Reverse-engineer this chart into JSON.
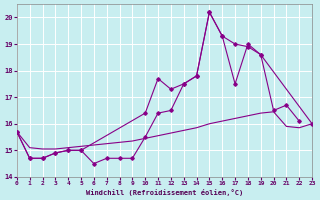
{
  "bg_color": "#c8eef0",
  "grid_color": "#b8dde0",
  "line_color": "#880088",
  "xlabel": "Windchill (Refroidissement éolien,°C)",
  "xlim": [
    0,
    23
  ],
  "ylim": [
    14,
    20.5
  ],
  "yticks": [
    14,
    15,
    16,
    17,
    18,
    19,
    20
  ],
  "xticks": [
    0,
    1,
    2,
    3,
    4,
    5,
    6,
    7,
    8,
    9,
    10,
    11,
    12,
    13,
    14,
    15,
    16,
    17,
    18,
    19,
    20,
    21,
    22,
    23
  ],
  "line1_x": [
    0,
    1,
    2,
    3,
    4,
    5,
    6,
    7,
    8,
    9,
    10,
    11,
    12,
    13,
    14,
    15,
    16,
    17,
    18,
    19,
    20,
    21,
    22
  ],
  "line1_y": [
    15.7,
    14.7,
    14.7,
    14.9,
    15.0,
    15.0,
    14.5,
    14.7,
    14.7,
    14.7,
    15.5,
    16.4,
    16.5,
    17.5,
    17.8,
    20.2,
    19.3,
    17.5,
    19.0,
    18.6,
    16.5,
    16.7,
    16.1
  ],
  "line2_x": [
    0,
    1,
    2,
    3,
    4,
    5,
    10,
    11,
    12,
    13,
    14,
    15,
    16,
    17,
    18,
    19,
    23
  ],
  "line2_y": [
    15.7,
    14.7,
    14.7,
    14.9,
    15.0,
    15.0,
    16.4,
    17.7,
    17.3,
    17.5,
    17.8,
    20.2,
    19.3,
    19.0,
    18.9,
    18.6,
    16.0
  ],
  "line3_x": [
    0,
    1,
    2,
    3,
    4,
    5,
    6,
    7,
    8,
    9,
    10,
    11,
    12,
    13,
    14,
    15,
    16,
    17,
    18,
    19,
    20,
    21,
    22,
    23
  ],
  "line3_y": [
    15.7,
    15.1,
    15.05,
    15.05,
    15.1,
    15.15,
    15.2,
    15.25,
    15.3,
    15.35,
    15.45,
    15.55,
    15.65,
    15.75,
    15.85,
    16.0,
    16.1,
    16.2,
    16.3,
    16.4,
    16.45,
    15.9,
    15.85,
    16.0
  ]
}
